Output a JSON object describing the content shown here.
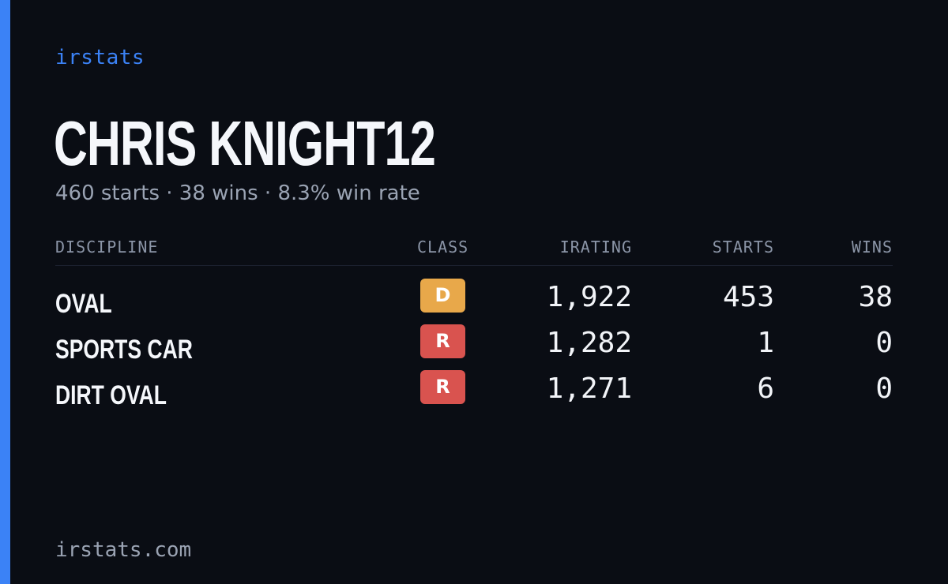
{
  "brand": "irstats",
  "driver": {
    "name": "CHRIS KNIGHT12",
    "summary": "460 starts · 38 wins · 8.3% win rate"
  },
  "table": {
    "headers": {
      "discipline": "DISCIPLINE",
      "class": "CLASS",
      "irating": "IRATING",
      "starts": "STARTS",
      "wins": "WINS"
    },
    "rows": [
      {
        "discipline": "OVAL",
        "class": "D",
        "class_color": "#e8a84a",
        "irating": "1,922",
        "starts": "453",
        "wins": "38"
      },
      {
        "discipline": "SPORTS CAR",
        "class": "R",
        "class_color": "#d9534f",
        "irating": "1,282",
        "starts": "1",
        "wins": "0"
      },
      {
        "discipline": "DIRT OVAL",
        "class": "R",
        "class_color": "#d9534f",
        "irating": "1,271",
        "starts": "6",
        "wins": "0"
      }
    ]
  },
  "footer": "irstats.com",
  "colors": {
    "background": "#0a0d14",
    "accent": "#3b82f6",
    "muted_text": "#9aa3b3"
  }
}
